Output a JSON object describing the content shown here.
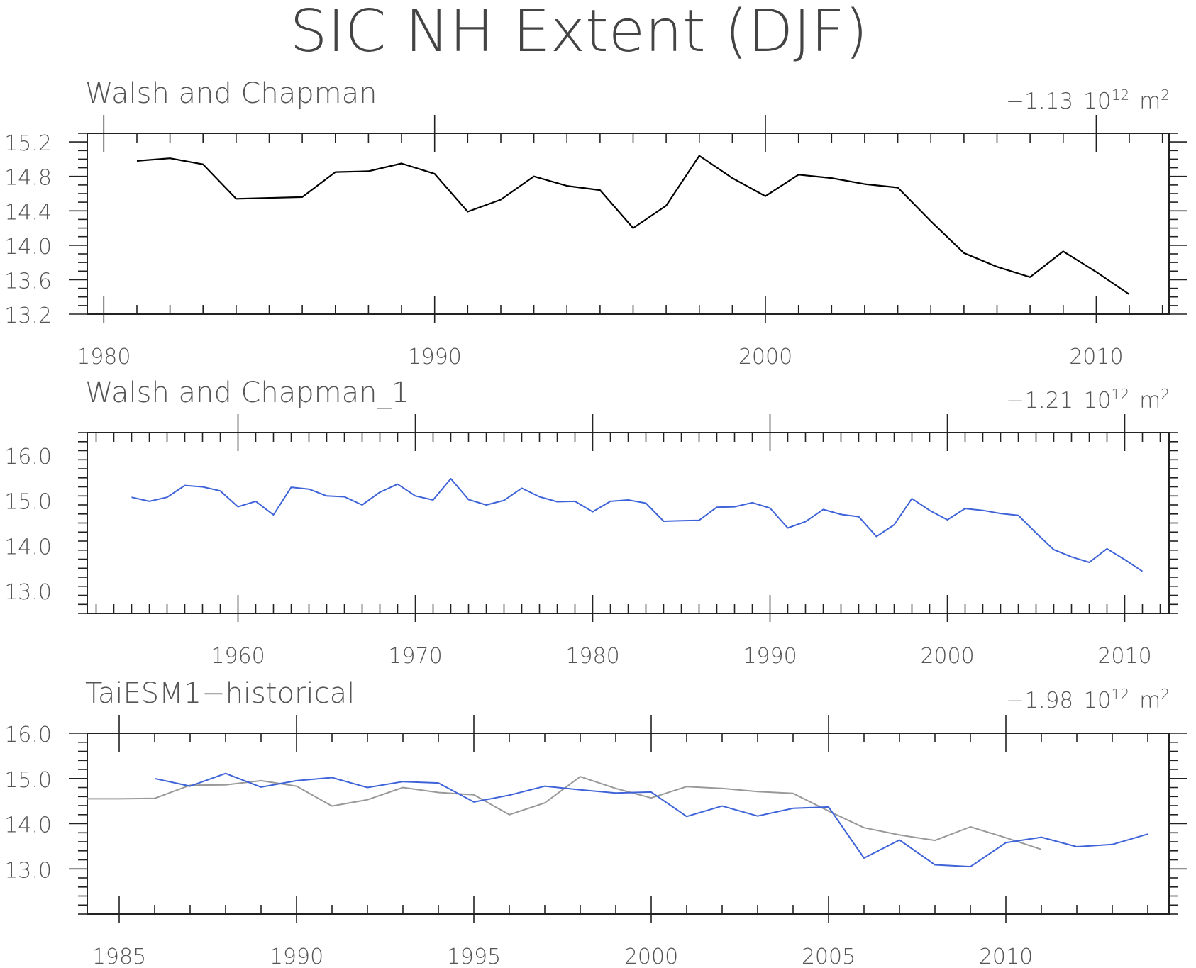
{
  "page_title": "SIC NH Extent (DJF)",
  "chart_data": [
    {
      "type": "line",
      "title": "Walsh and Chapman",
      "trend_label": "−1.13",
      "unit_base": "10",
      "unit_exp": "12",
      "unit_name": "m",
      "unit_name_exp": "2",
      "xlim": [
        1979.5,
        2012.2
      ],
      "ylim": [
        13.2,
        15.3
      ],
      "xticks": [
        1980,
        1990,
        2000,
        2010
      ],
      "yticks": [
        "13.2",
        "13.6",
        "14.0",
        "14.4",
        "14.8",
        "15.2"
      ],
      "series": [
        {
          "color": "#000000",
          "x": [
            1981,
            1982,
            1983,
            1984,
            1985,
            1986,
            1987,
            1988,
            1989,
            1990,
            1991,
            1992,
            1993,
            1994,
            1995,
            1996,
            1997,
            1998,
            1999,
            2000,
            2001,
            2002,
            2003,
            2004,
            2005,
            2006,
            2007,
            2008,
            2009,
            2010,
            2011
          ],
          "values": [
            14.98,
            15.01,
            14.94,
            14.54,
            14.55,
            14.56,
            14.85,
            14.86,
            14.95,
            14.83,
            14.39,
            14.53,
            14.8,
            14.69,
            14.64,
            14.2,
            14.46,
            15.04,
            14.78,
            14.57,
            14.82,
            14.78,
            14.71,
            14.67,
            14.28,
            13.91,
            13.75,
            13.63,
            13.93,
            13.69,
            13.43
          ]
        }
      ]
    },
    {
      "type": "line",
      "title": "Walsh and Chapman_1",
      "trend_label": "−1.21",
      "unit_base": "10",
      "unit_exp": "12",
      "unit_name": "m",
      "unit_name_exp": "2",
      "xlim": [
        1951.5,
        2012.5
      ],
      "ylim": [
        12.5,
        16.5
      ],
      "xticks": [
        1960,
        1970,
        1980,
        1990,
        2000,
        2010
      ],
      "yticks": [
        "13.0",
        "14.0",
        "15.0",
        "16.0"
      ],
      "series": [
        {
          "color": "#3e63d8",
          "x": [
            1954,
            1955,
            1956,
            1957,
            1958,
            1959,
            1960,
            1961,
            1962,
            1963,
            1964,
            1965,
            1966,
            1967,
            1968,
            1969,
            1970,
            1971,
            1972,
            1973,
            1974,
            1975,
            1976,
            1977,
            1978,
            1979,
            1980,
            1981,
            1982,
            1983,
            1984,
            1985,
            1986,
            1987,
            1988,
            1989,
            1990,
            1991,
            1992,
            1993,
            1994,
            1995,
            1996,
            1997,
            1998,
            1999,
            2000,
            2001,
            2002,
            2003,
            2004,
            2005,
            2006,
            2007,
            2008,
            2009,
            2010,
            2011
          ],
          "values": [
            15.07,
            14.98,
            15.07,
            15.33,
            15.3,
            15.21,
            14.86,
            14.98,
            14.68,
            15.29,
            15.25,
            15.1,
            15.08,
            14.9,
            15.18,
            15.36,
            15.1,
            15.01,
            15.48,
            15.02,
            14.9,
            15.0,
            15.27,
            15.08,
            14.97,
            14.98,
            14.75,
            14.98,
            15.01,
            14.94,
            14.54,
            14.55,
            14.56,
            14.85,
            14.86,
            14.95,
            14.83,
            14.39,
            14.53,
            14.8,
            14.69,
            14.64,
            14.2,
            14.46,
            15.04,
            14.78,
            14.57,
            14.82,
            14.78,
            14.71,
            14.67,
            14.28,
            13.91,
            13.75,
            13.63,
            13.93,
            13.69,
            13.43
          ]
        }
      ]
    },
    {
      "type": "line",
      "title": "TaiESM1−historical",
      "trend_label": "−1.98",
      "unit_base": "10",
      "unit_exp": "12",
      "unit_name": "m",
      "unit_name_exp": "2",
      "xlim": [
        1984.1,
        2014.6
      ],
      "ylim": [
        12.0,
        16.0
      ],
      "xticks": [
        1985,
        1990,
        1995,
        2000,
        2005,
        2010
      ],
      "yticks": [
        "13.0",
        "14.0",
        "15.0",
        "16.0"
      ],
      "series": [
        {
          "color": "#999999",
          "x": [
            1984.1,
            1985,
            1986,
            1987,
            1988,
            1989,
            1990,
            1991,
            1992,
            1993,
            1994,
            1995,
            1996,
            1997,
            1998,
            1999,
            2000,
            2001,
            2002,
            2003,
            2004,
            2005,
            2006,
            2007,
            2008,
            2009,
            2010,
            2011
          ],
          "values": [
            14.55,
            14.55,
            14.56,
            14.85,
            14.86,
            14.95,
            14.83,
            14.39,
            14.53,
            14.8,
            14.69,
            14.64,
            14.2,
            14.46,
            15.04,
            14.78,
            14.57,
            14.82,
            14.78,
            14.71,
            14.67,
            14.28,
            13.91,
            13.75,
            13.63,
            13.93,
            13.69,
            13.43
          ]
        },
        {
          "color": "#3e63d8",
          "x": [
            1986,
            1987,
            1988,
            1989,
            1990,
            1991,
            1992,
            1993,
            1994,
            1995,
            1996,
            1997,
            1998,
            1999,
            2000,
            2001,
            2002,
            2003,
            2004,
            2005,
            2006,
            2007,
            2008,
            2009,
            2010,
            2011,
            2012,
            2013,
            2014
          ],
          "values": [
            15.0,
            14.83,
            15.11,
            14.81,
            14.95,
            15.02,
            14.8,
            14.93,
            14.9,
            14.48,
            14.63,
            14.83,
            14.75,
            14.68,
            14.7,
            14.16,
            14.39,
            14.17,
            14.34,
            14.37,
            13.24,
            13.64,
            13.09,
            13.05,
            13.58,
            13.7,
            13.49,
            13.54,
            13.77
          ]
        }
      ]
    }
  ]
}
